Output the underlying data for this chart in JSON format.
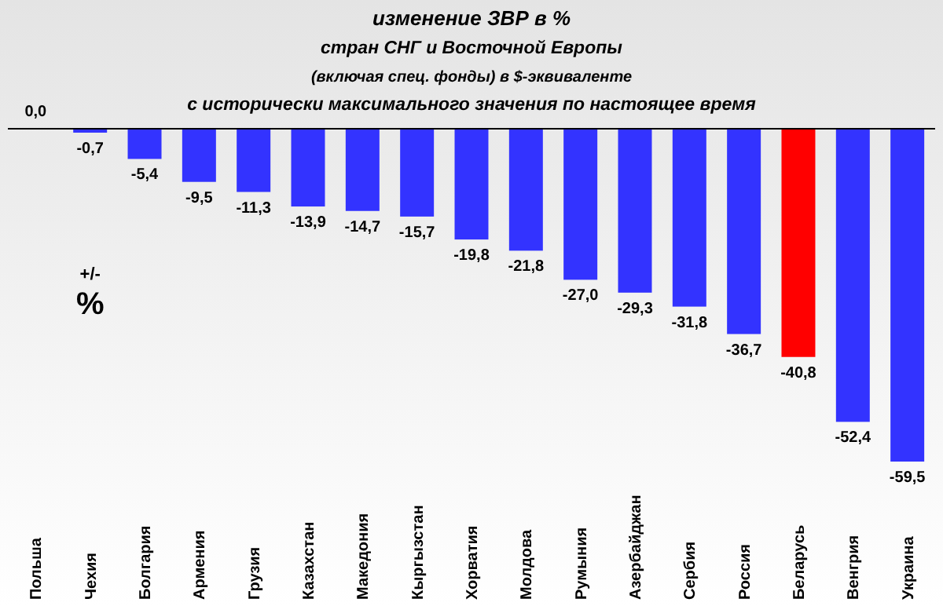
{
  "chart_data": {
    "type": "bar",
    "title": "изменение ЗВР в %",
    "subtitle": "стран СНГ и Восточной Европы\n(включая  спец. фонды) в $-эквиваленте\nс исторически максимального значения по настоящее время",
    "ylabel": "+/-\n%",
    "categories": [
      "Польша",
      "Чехия",
      "Болгария",
      "Армения",
      "Грузия",
      "Казахстан",
      "Македония",
      "Кыргызстан",
      "Хорватия",
      "Молдова",
      "Румыния",
      "Азербайджан",
      "Сербия",
      "Россия",
      "Беларусь",
      "Венгрия",
      "Украина"
    ],
    "values": [
      0,
      -0.7,
      -5.4,
      -9.5,
      -11.3,
      -13.9,
      -14.7,
      -15.7,
      -19.8,
      -21.8,
      -27.0,
      -29.3,
      -31.8,
      -36.7,
      -40.8,
      -52.4,
      -59.5
    ],
    "value_labels": [
      "0,0",
      "-0,7",
      "-5,4",
      "-9,5",
      "-11,3",
      "-13,9",
      "-14,7",
      "-15,7",
      "-19,8",
      "-21,8",
      "-27,0",
      "-29,3",
      "-31,8",
      "-36,7",
      "-40,8",
      "-52,4",
      "-59,5"
    ],
    "colors": [
      "#3333ff",
      "#3333ff",
      "#3333ff",
      "#3333ff",
      "#3333ff",
      "#3333ff",
      "#3333ff",
      "#3333ff",
      "#3333ff",
      "#3333ff",
      "#3333ff",
      "#3333ff",
      "#3333ff",
      "#3333ff",
      "#ff0000",
      "#3333ff",
      "#3333ff"
    ]
  }
}
